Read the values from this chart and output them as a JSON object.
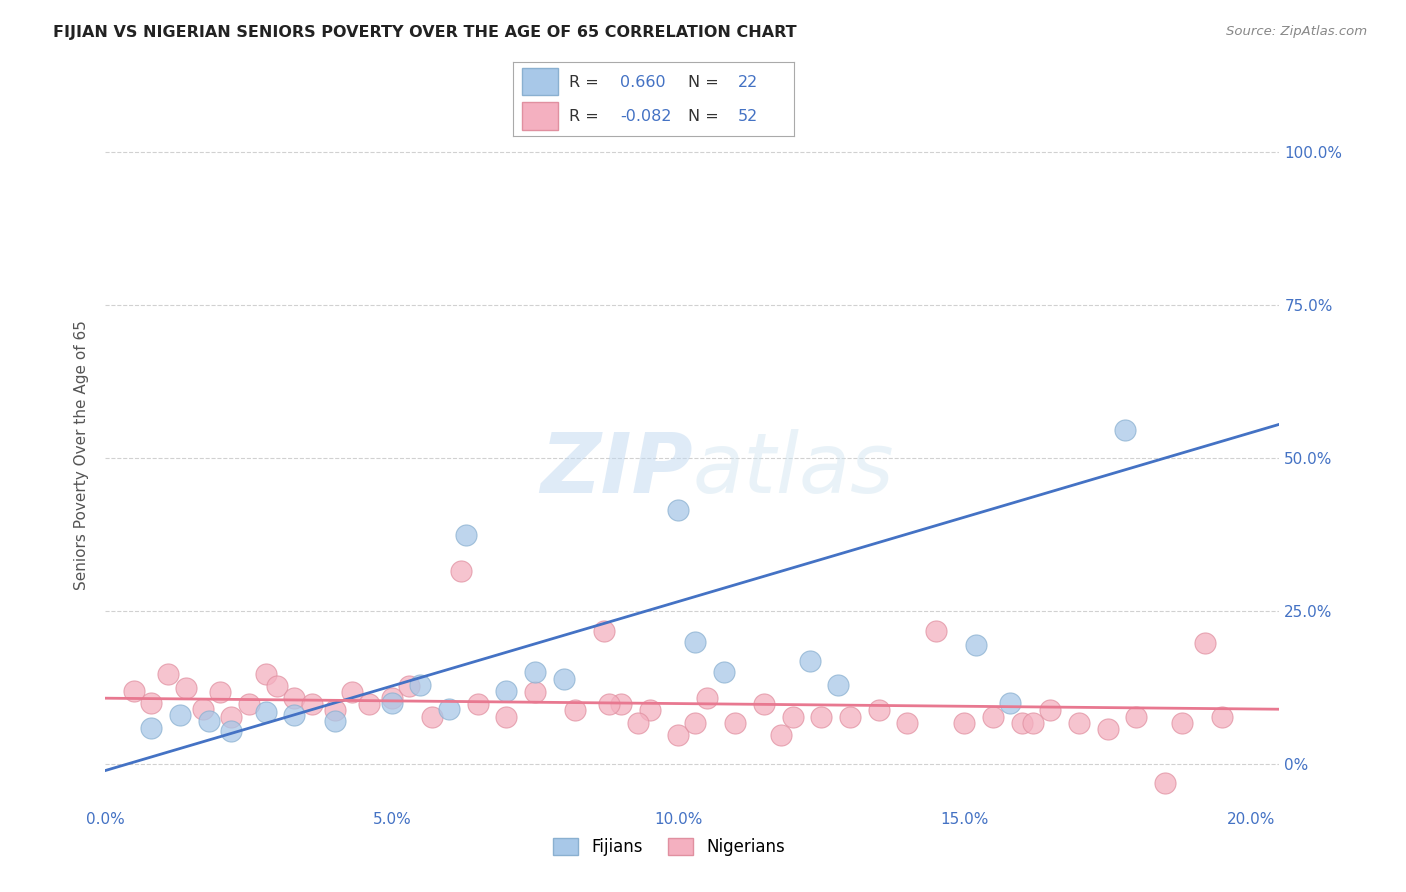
{
  "title": "FIJIAN VS NIGERIAN SENIORS POVERTY OVER THE AGE OF 65 CORRELATION CHART",
  "source": "Source: ZipAtlas.com",
  "ylabel": "Seniors Poverty Over the Age of 65",
  "x_tick_labels": [
    "0.0%",
    "5.0%",
    "10.0%",
    "15.0%",
    "20.0%"
  ],
  "x_tick_vals": [
    0.0,
    0.05,
    0.1,
    0.15,
    0.2
  ],
  "y_tick_labels": [
    "0%",
    "25.0%",
    "50.0%",
    "75.0%",
    "100.0%"
  ],
  "y_tick_vals": [
    0.0,
    0.25,
    0.5,
    0.75,
    1.0
  ],
  "xmin": 0.0,
  "xmax": 0.205,
  "ymin": -0.07,
  "ymax": 1.08,
  "fijian_face_color": "#a8c8e8",
  "fijian_edge_color": "#8ab0d0",
  "nigerian_face_color": "#f4b0c0",
  "nigerian_edge_color": "#e090a0",
  "fijian_line_color": "#4472c4",
  "nigerian_line_color": "#e87890",
  "legend_text_color": "#4472c4",
  "legend_label_color": "#333333",
  "fijian_scatter_x": [
    0.008,
    0.013,
    0.018,
    0.022,
    0.028,
    0.033,
    0.04,
    0.05,
    0.055,
    0.06,
    0.063,
    0.07,
    0.075,
    0.08,
    0.1,
    0.103,
    0.108,
    0.123,
    0.128,
    0.152,
    0.158,
    0.178
  ],
  "fijian_scatter_y": [
    0.06,
    0.08,
    0.07,
    0.055,
    0.085,
    0.08,
    0.07,
    0.1,
    0.13,
    0.09,
    0.375,
    0.12,
    0.15,
    0.14,
    0.415,
    0.2,
    0.15,
    0.168,
    0.13,
    0.195,
    0.1,
    0.545
  ],
  "nigerian_scatter_x": [
    0.005,
    0.008,
    0.011,
    0.014,
    0.017,
    0.02,
    0.022,
    0.025,
    0.028,
    0.03,
    0.033,
    0.036,
    0.04,
    0.043,
    0.046,
    0.05,
    0.053,
    0.057,
    0.062,
    0.065,
    0.07,
    0.075,
    0.082,
    0.087,
    0.09,
    0.095,
    0.1,
    0.105,
    0.11,
    0.115,
    0.12,
    0.125,
    0.13,
    0.135,
    0.14,
    0.145,
    0.15,
    0.155,
    0.16,
    0.165,
    0.17,
    0.175,
    0.18,
    0.185,
    0.192,
    0.195,
    0.103,
    0.118,
    0.088,
    0.093,
    0.162,
    0.188
  ],
  "nigerian_scatter_y": [
    0.12,
    0.1,
    0.148,
    0.125,
    0.09,
    0.118,
    0.078,
    0.098,
    0.148,
    0.128,
    0.108,
    0.098,
    0.088,
    0.118,
    0.098,
    0.108,
    0.128,
    0.078,
    0.315,
    0.098,
    0.078,
    0.118,
    0.088,
    0.218,
    0.098,
    0.088,
    0.048,
    0.108,
    0.068,
    0.098,
    0.078,
    0.078,
    0.078,
    0.088,
    0.068,
    0.218,
    0.068,
    0.078,
    0.068,
    0.088,
    0.068,
    0.058,
    0.078,
    -0.03,
    0.198,
    0.078,
    0.068,
    0.048,
    0.098,
    0.068,
    0.068,
    0.068
  ],
  "fijian_line_x0": 0.0,
  "fijian_line_y0": -0.01,
  "fijian_line_x1": 0.205,
  "fijian_line_y1": 0.555,
  "nigerian_line_x0": 0.0,
  "nigerian_line_y0": 0.108,
  "nigerian_line_x1": 0.205,
  "nigerian_line_y1": 0.09
}
